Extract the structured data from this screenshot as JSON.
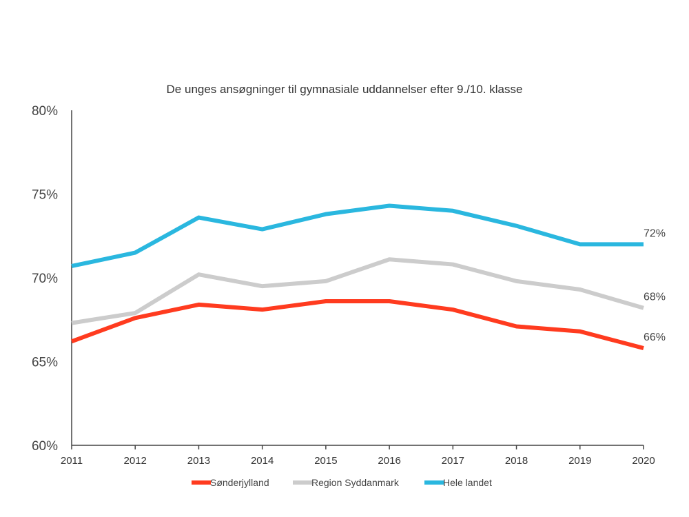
{
  "chart_data": {
    "type": "line",
    "title": "De unges ansøgninger til gymnasiale uddannelser efter 9./10. klasse",
    "xlabel": "",
    "ylabel": "",
    "x": [
      "2011",
      "2012",
      "2013",
      "2014",
      "2015",
      "2016",
      "2017",
      "2018",
      "2019",
      "2020"
    ],
    "ylim": [
      60,
      80
    ],
    "yticks": [
      60,
      65,
      70,
      75,
      80
    ],
    "ytick_labels": [
      "60%",
      "65%",
      "70%",
      "75%",
      "80%"
    ],
    "grid": false,
    "legend_position": "bottom",
    "series": [
      {
        "name": "Sønderjylland",
        "color": "#ff3b1f",
        "values": [
          66.2,
          67.6,
          68.4,
          68.1,
          68.6,
          68.6,
          68.1,
          67.1,
          66.8,
          65.8
        ],
        "end_label": "66%"
      },
      {
        "name": "Region Syddanmark",
        "color": "#cccccc",
        "values": [
          67.3,
          67.9,
          70.2,
          69.5,
          69.8,
          71.1,
          70.8,
          69.8,
          69.3,
          68.2
        ],
        "end_label": "68%"
      },
      {
        "name": "Hele landet",
        "color": "#2ab7df",
        "values": [
          70.7,
          71.5,
          73.6,
          72.9,
          73.8,
          74.3,
          74.0,
          73.1,
          72.0,
          72.0
        ],
        "end_label": "72%"
      }
    ]
  }
}
